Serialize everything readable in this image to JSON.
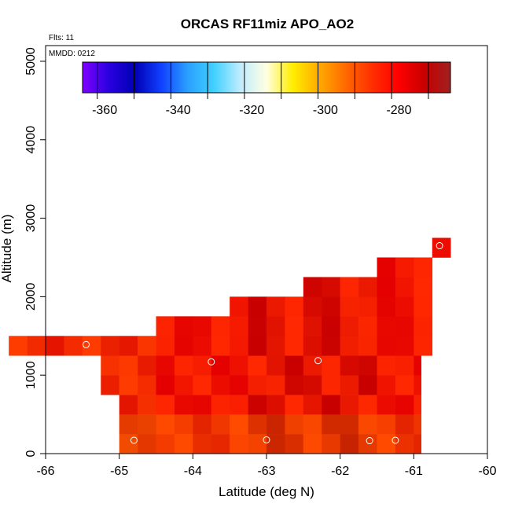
{
  "chart_data": {
    "type": "heatmap",
    "title": "ORCAS RF11miz APO_AO2",
    "xlabel": "Latitude (deg N)",
    "ylabel": "Altitude (m)",
    "xlim": [
      -66,
      -60
    ],
    "ylim": [
      0,
      5200
    ],
    "x_ticks": [
      -66,
      -65,
      -64,
      -63,
      -62,
      -61,
      -60
    ],
    "y_ticks": [
      0,
      1000,
      2000,
      3000,
      4000,
      5000
    ],
    "annotations": {
      "flights": "Flts: 11",
      "date": "MMDD: 0212"
    },
    "colorbar": {
      "range": [
        -366,
        -266
      ],
      "ticks": [
        -360,
        -340,
        -320,
        -300,
        -280
      ],
      "colors": [
        "#8000ff",
        "#2a00e0",
        "#0000b4",
        "#1040ff",
        "#2aa0ff",
        "#40d0ff",
        "#c0ecff",
        "#ffffe0",
        "#ffee00",
        "#ffaa00",
        "#ff6a00",
        "#ff3000",
        "#ff0000",
        "#c80000",
        "#a02020"
      ]
    },
    "grid": {
      "lat_bin": 0.25,
      "alt_bin": 250,
      "rows": [
        {
          "alt": 0,
          "cells": [
            [
              -65.0,
              -60.9,
              -277
            ]
          ]
        },
        {
          "alt": 250,
          "cells": [
            [
              -65.0,
              -60.9,
              -276
            ]
          ]
        },
        {
          "alt": 500,
          "cells": [
            [
              -65.0,
              -60.9,
              -275
            ]
          ]
        },
        {
          "alt": 750,
          "cells": [
            [
              -65.25,
              -60.9,
              -274
            ]
          ]
        },
        {
          "alt": 1000,
          "cells": [
            [
              -65.25,
              -60.9,
              -273
            ]
          ]
        },
        {
          "alt": 1250,
          "cells": [
            [
              -66.5,
              -60.75,
              -275
            ]
          ]
        },
        {
          "alt": 1500,
          "cells": [
            [
              -64.5,
              -60.75,
              -275
            ]
          ]
        },
        {
          "alt": 1750,
          "cells": [
            [
              -63.5,
              -60.75,
              -276
            ]
          ]
        },
        {
          "alt": 2000,
          "cells": [
            [
              -62.5,
              -60.75,
              -276
            ]
          ]
        },
        {
          "alt": 2250,
          "cells": [
            [
              -61.5,
              -60.75,
              -277
            ]
          ]
        },
        {
          "alt": 2500,
          "cells": [
            [
              -60.75,
              -60.5,
              -278
            ]
          ]
        }
      ]
    },
    "sample_points": [
      {
        "lat": -65.45,
        "alt": 1390
      },
      {
        "lat": -64.8,
        "alt": 170
      },
      {
        "lat": -63.75,
        "alt": 1170
      },
      {
        "lat": -63.0,
        "alt": 175
      },
      {
        "lat": -62.3,
        "alt": 1185
      },
      {
        "lat": -61.6,
        "alt": 165
      },
      {
        "lat": -61.25,
        "alt": 170
      },
      {
        "lat": -60.65,
        "alt": 2650
      }
    ]
  }
}
